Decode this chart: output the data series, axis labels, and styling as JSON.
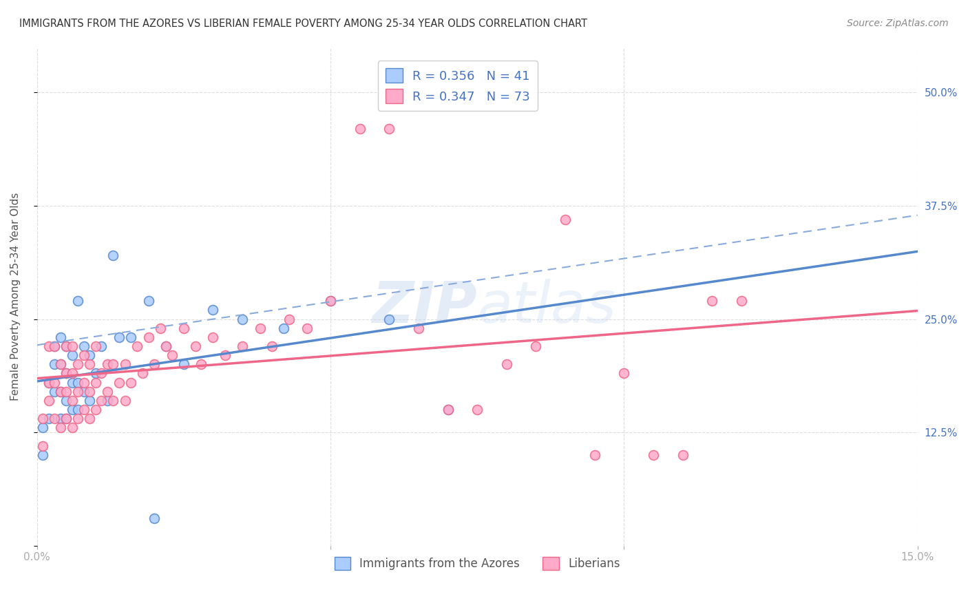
{
  "title": "IMMIGRANTS FROM THE AZORES VS LIBERIAN FEMALE POVERTY AMONG 25-34 YEAR OLDS CORRELATION CHART",
  "source": "Source: ZipAtlas.com",
  "ylabel": "Female Poverty Among 25-34 Year Olds",
  "xlim": [
    0.0,
    0.15
  ],
  "ylim": [
    0.0,
    0.55
  ],
  "x_ticks": [
    0.0,
    0.05,
    0.1,
    0.15
  ],
  "x_tick_labels": [
    "0.0%",
    "",
    "",
    "15.0%"
  ],
  "y_ticks": [
    0.0,
    0.125,
    0.25,
    0.375,
    0.5
  ],
  "y_tick_labels_right": [
    "",
    "12.5%",
    "25.0%",
    "37.5%",
    "50.0%"
  ],
  "background_color": "#ffffff",
  "grid_color": "#dddddd",
  "watermark_text": "ZIPatlas",
  "color_blue": "#aaccff",
  "color_pink": "#ffaac8",
  "line_blue": "#5588cc",
  "line_pink": "#ee6688",
  "line_blue_dashed": "#88aadd",
  "label_blue": "Immigrants from the Azores",
  "label_pink": "Liberians",
  "legend_text_color": "#4472c4",
  "tick_color": "#4472c4",
  "azores_x": [
    0.001,
    0.001,
    0.002,
    0.002,
    0.003,
    0.003,
    0.003,
    0.004,
    0.004,
    0.004,
    0.004,
    0.005,
    0.005,
    0.005,
    0.005,
    0.006,
    0.006,
    0.006,
    0.007,
    0.007,
    0.007,
    0.008,
    0.008,
    0.009,
    0.009,
    0.01,
    0.011,
    0.012,
    0.013,
    0.014,
    0.016,
    0.019,
    0.022,
    0.025,
    0.03,
    0.035,
    0.042,
    0.05,
    0.06,
    0.07,
    0.02
  ],
  "azores_y": [
    0.13,
    0.1,
    0.18,
    0.14,
    0.17,
    0.2,
    0.22,
    0.14,
    0.17,
    0.2,
    0.23,
    0.14,
    0.16,
    0.19,
    0.22,
    0.15,
    0.18,
    0.21,
    0.15,
    0.18,
    0.27,
    0.17,
    0.22,
    0.16,
    0.21,
    0.19,
    0.22,
    0.16,
    0.32,
    0.23,
    0.23,
    0.27,
    0.22,
    0.2,
    0.26,
    0.25,
    0.24,
    0.27,
    0.25,
    0.15,
    0.03
  ],
  "liberian_x": [
    0.001,
    0.001,
    0.002,
    0.002,
    0.002,
    0.003,
    0.003,
    0.003,
    0.004,
    0.004,
    0.004,
    0.005,
    0.005,
    0.005,
    0.005,
    0.006,
    0.006,
    0.006,
    0.006,
    0.007,
    0.007,
    0.007,
    0.008,
    0.008,
    0.008,
    0.009,
    0.009,
    0.009,
    0.01,
    0.01,
    0.01,
    0.011,
    0.011,
    0.012,
    0.012,
    0.013,
    0.013,
    0.014,
    0.015,
    0.015,
    0.016,
    0.017,
    0.018,
    0.019,
    0.02,
    0.021,
    0.022,
    0.023,
    0.025,
    0.027,
    0.028,
    0.03,
    0.032,
    0.035,
    0.038,
    0.04,
    0.043,
    0.046,
    0.05,
    0.055,
    0.06,
    0.065,
    0.07,
    0.075,
    0.08,
    0.085,
    0.09,
    0.095,
    0.1,
    0.105,
    0.11,
    0.115,
    0.12
  ],
  "liberian_y": [
    0.14,
    0.11,
    0.16,
    0.18,
    0.22,
    0.14,
    0.18,
    0.22,
    0.13,
    0.17,
    0.2,
    0.14,
    0.17,
    0.19,
    0.22,
    0.13,
    0.16,
    0.19,
    0.22,
    0.14,
    0.17,
    0.2,
    0.15,
    0.18,
    0.21,
    0.14,
    0.17,
    0.2,
    0.15,
    0.18,
    0.22,
    0.16,
    0.19,
    0.17,
    0.2,
    0.16,
    0.2,
    0.18,
    0.16,
    0.2,
    0.18,
    0.22,
    0.19,
    0.23,
    0.2,
    0.24,
    0.22,
    0.21,
    0.24,
    0.22,
    0.2,
    0.23,
    0.21,
    0.22,
    0.24,
    0.22,
    0.25,
    0.24,
    0.27,
    0.46,
    0.46,
    0.24,
    0.15,
    0.15,
    0.2,
    0.22,
    0.36,
    0.1,
    0.19,
    0.1,
    0.1,
    0.27,
    0.27
  ]
}
